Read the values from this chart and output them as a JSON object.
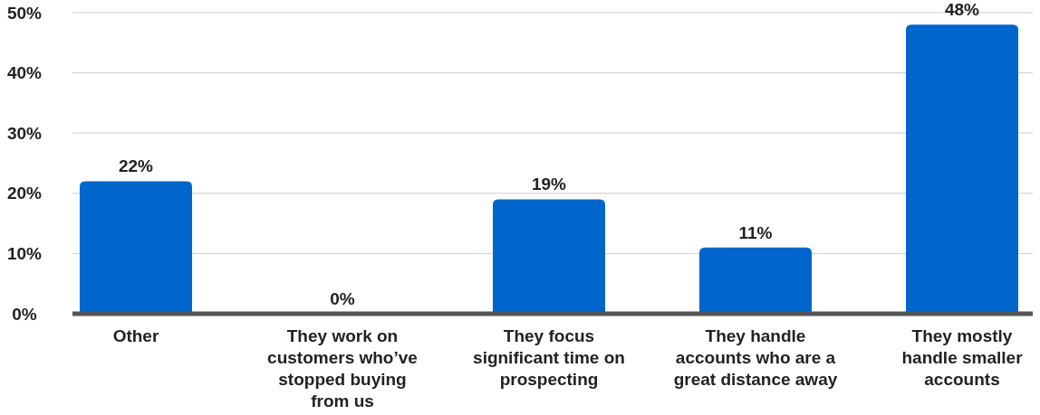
{
  "chart_data": {
    "type": "bar",
    "categories": [
      "Other",
      "They work on customers who’ve stopped buying from us",
      "They focus significant time on prospecting",
      "They handle accounts who are a great distance away",
      "They mostly handle smaller accounts"
    ],
    "values": [
      22,
      0,
      19,
      11,
      48
    ],
    "color": "#0066cc",
    "ylim": [
      0,
      50
    ],
    "yticks": [
      {
        "value": 0,
        "label": "0%"
      },
      {
        "value": 10,
        "label": "10%"
      },
      {
        "value": 20,
        "label": "20%"
      },
      {
        "value": 30,
        "label": "30%"
      },
      {
        "value": 40,
        "label": "40%"
      },
      {
        "value": 50,
        "label": "50%"
      }
    ],
    "grid": "y",
    "value_labels": [
      "22%",
      "0%",
      "19%",
      "11%",
      "48%"
    ]
  }
}
